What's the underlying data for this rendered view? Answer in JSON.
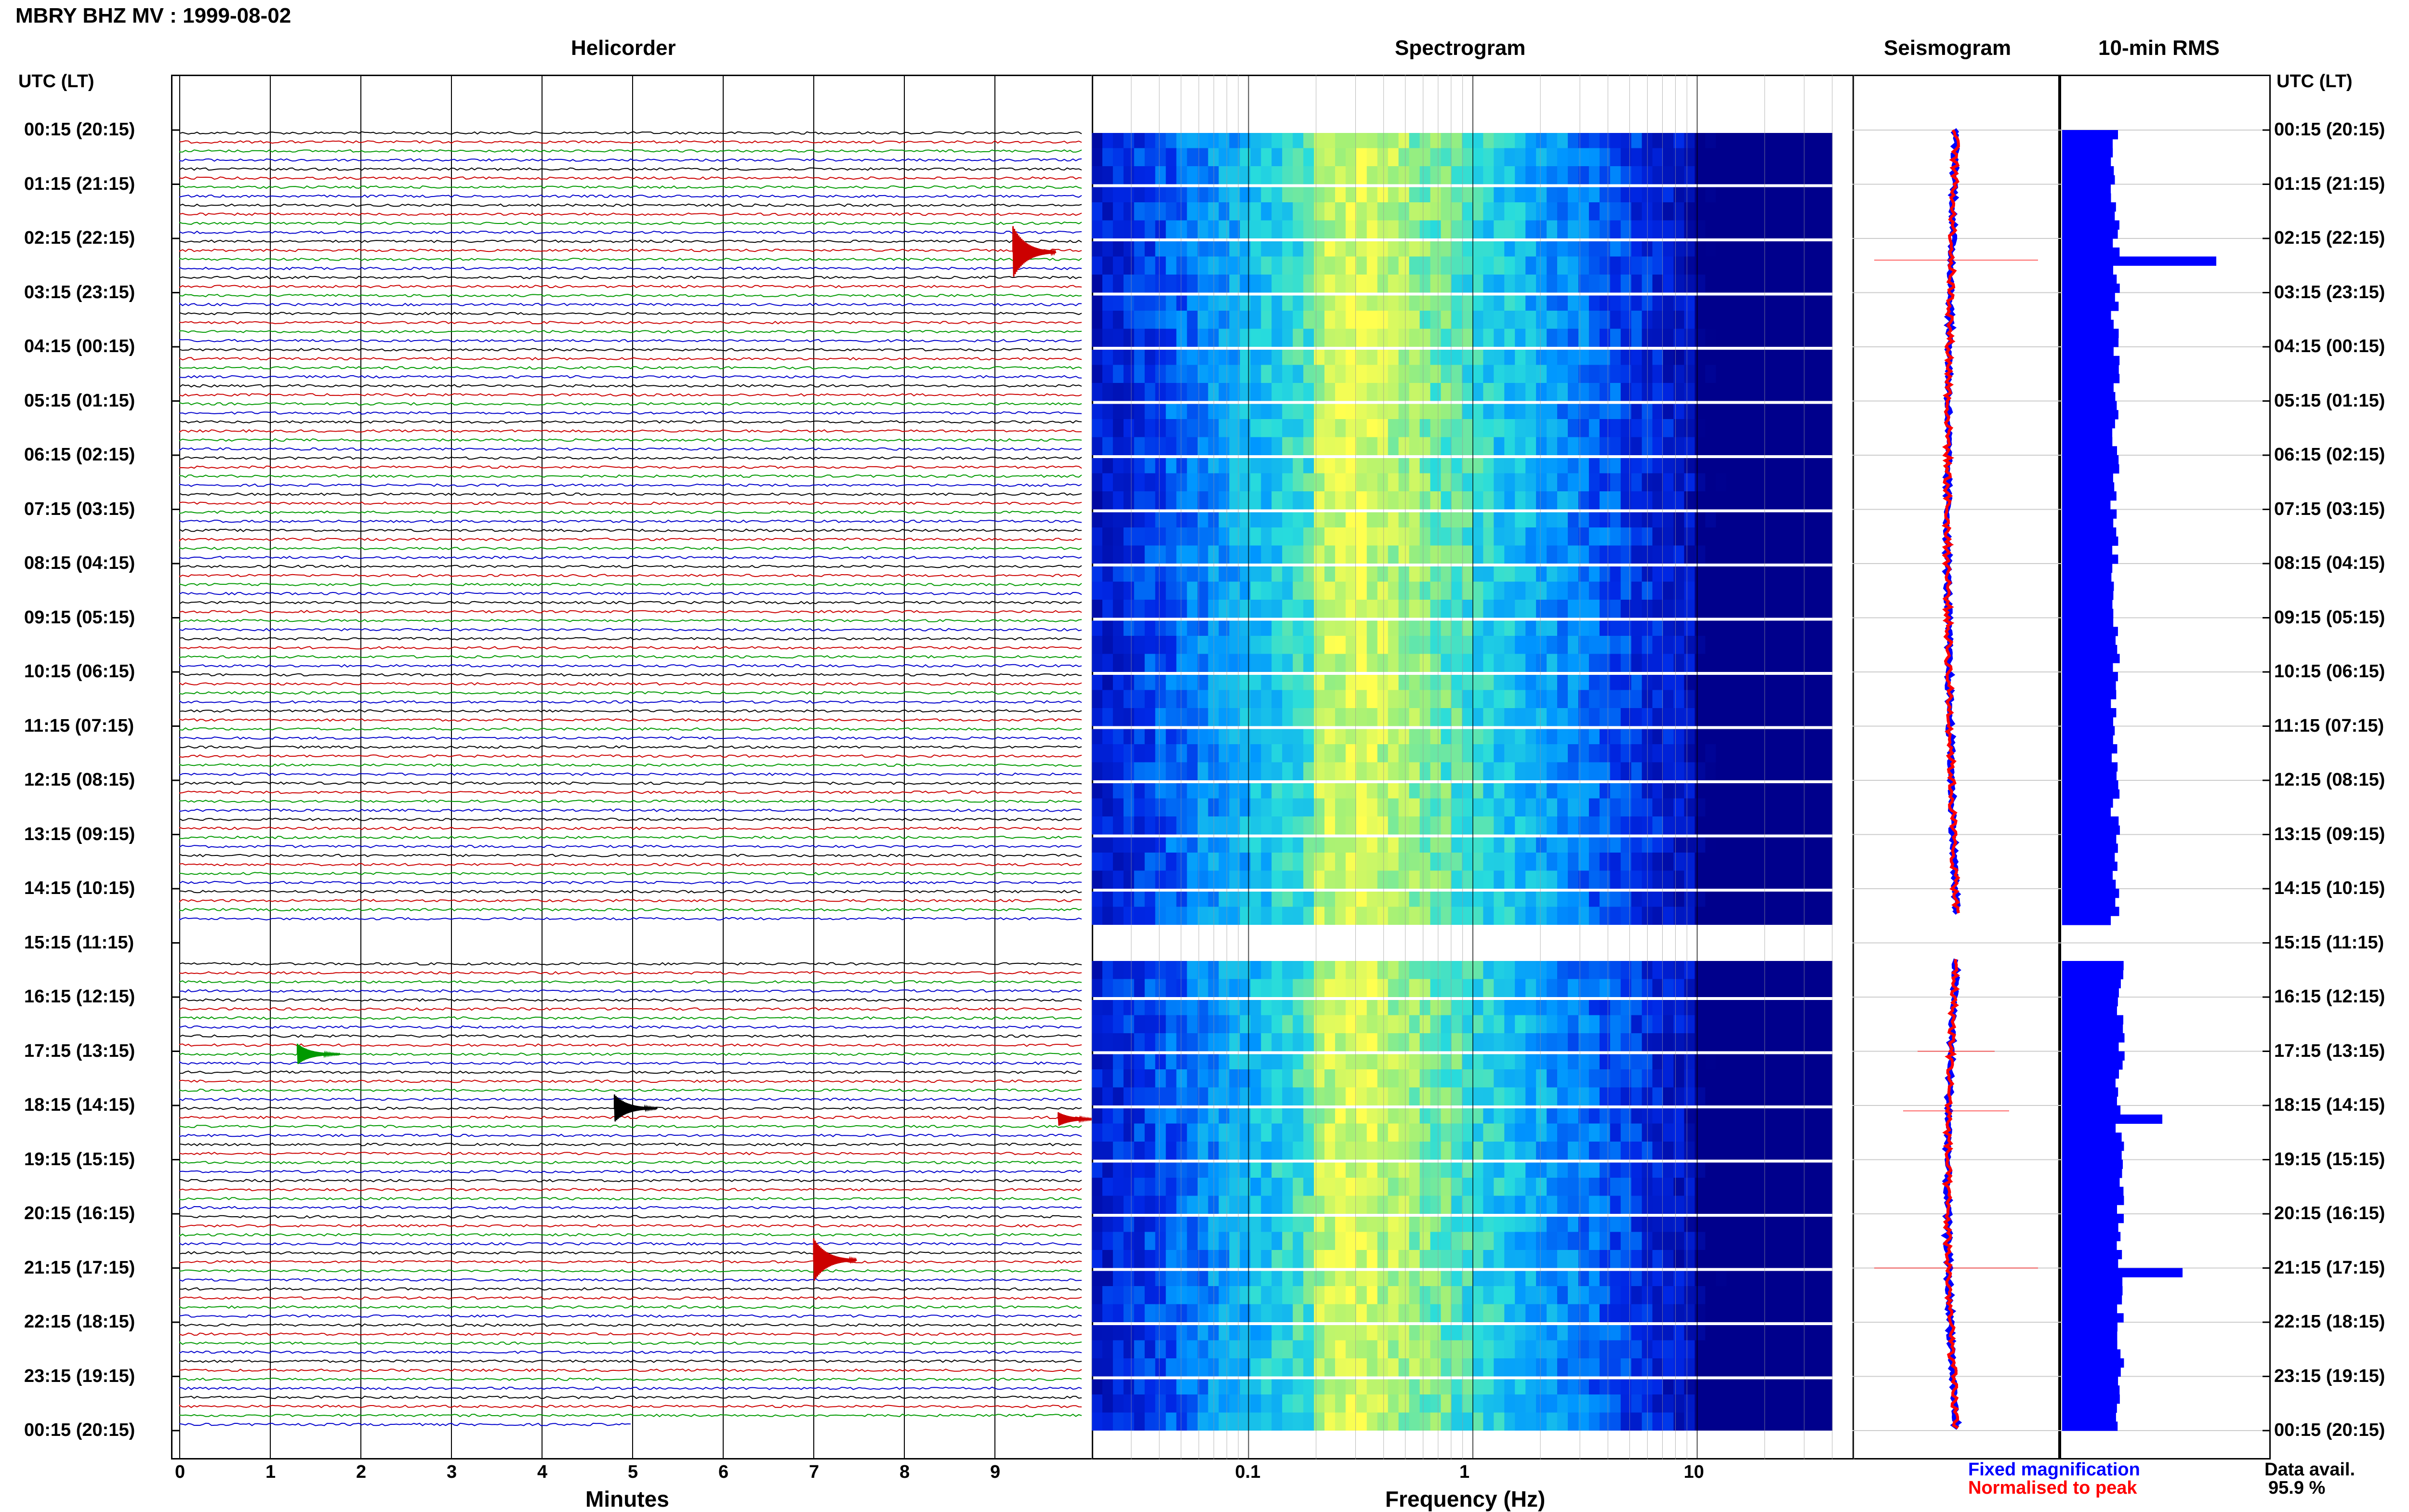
{
  "header": {
    "title": "MBRY BHZ MV : 1999-08-02"
  },
  "panels": {
    "helicorder": "Helicorder",
    "spectrogram": "Spectrogram",
    "seismogram": "Seismogram",
    "rms": "10-min RMS"
  },
  "axes": {
    "utc_label_left": "UTC (LT)",
    "utc_label_right": "UTC (LT)",
    "minutes_label": "Minutes",
    "frequency_label": "Frequency (Hz)",
    "minute_ticks": [
      "0",
      "1",
      "2",
      "3",
      "4",
      "5",
      "6",
      "7",
      "8",
      "9"
    ],
    "frequency_ticks": [
      "0.1",
      "1",
      "10"
    ]
  },
  "legend": {
    "fixed": "Fixed magnification",
    "normalised": "Normalised to peak",
    "fixed_color": "#0000ff",
    "normalised_color": "#ff0000"
  },
  "data_availability": {
    "label": "Data avail.",
    "value": "95.9 %"
  },
  "colors": {
    "trace_cycle": [
      "#000000",
      "#cc0000",
      "#009900",
      "#0000cc"
    ],
    "rms_bar": "#0000ff",
    "spectro_low": "#000080",
    "spectro_high": "#ffff40"
  },
  "chart_data": {
    "type": "heatmap",
    "title": "MBRY BHZ MV : 1999-08-02",
    "time_labels": [
      "00:15 (20:15)",
      "01:15 (21:15)",
      "02:15 (22:15)",
      "03:15 (23:15)",
      "04:15 (00:15)",
      "05:15 (01:15)",
      "06:15 (02:15)",
      "07:15 (03:15)",
      "08:15 (04:15)",
      "09:15 (05:15)",
      "10:15 (06:15)",
      "11:15 (07:15)",
      "12:15 (08:15)",
      "13:15 (09:15)",
      "14:15 (10:15)",
      "15:15 (11:15)",
      "16:15 (12:15)",
      "17:15 (13:15)",
      "18:15 (14:15)",
      "19:15 (15:15)",
      "20:15 (16:15)",
      "21:15 (17:15)",
      "22:15 (18:15)",
      "23:15 (19:15)",
      "00:15 (20:15)"
    ],
    "helicorder": {
      "xlabel": "Minutes",
      "xlim": [
        0,
        10
      ],
      "lines_per_hour": 6,
      "data_gap_hours": [
        14.6,
        15.3
      ],
      "events": [
        {
          "hour": 2.2,
          "minute": 9.2,
          "amplitude": 3.0
        },
        {
          "hour": 17.0,
          "minute": 1.3,
          "amplitude": 1.2
        },
        {
          "hour": 18.0,
          "minute": 4.8,
          "amplitude": 1.6
        },
        {
          "hour": 18.2,
          "minute": 9.7,
          "amplitude": 0.8
        },
        {
          "hour": 20.8,
          "minute": 7.0,
          "amplitude": 2.5
        }
      ]
    },
    "spectrogram": {
      "xlabel": "Frequency (Hz)",
      "xlim": [
        0.02,
        50
      ],
      "xscale": "log",
      "peak_band_hz": [
        0.2,
        0.5
      ]
    },
    "rms": {
      "bin_minutes": 10,
      "peaks": [
        {
          "hour": 2.4,
          "relative": 1.0
        },
        {
          "hour": 18.1,
          "relative": 0.6
        },
        {
          "hour": 21.0,
          "relative": 0.75
        }
      ]
    }
  }
}
